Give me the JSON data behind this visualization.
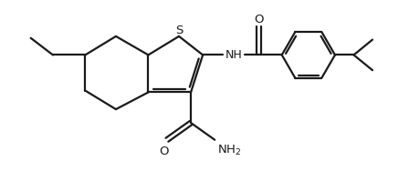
{
  "background_color": "#ffffff",
  "line_color": "#1a1a1a",
  "line_width": 1.6,
  "fig_width": 4.48,
  "fig_height": 1.88,
  "dpi": 100,
  "xlim": [
    0,
    11
  ],
  "ylim": [
    0,
    5
  ]
}
